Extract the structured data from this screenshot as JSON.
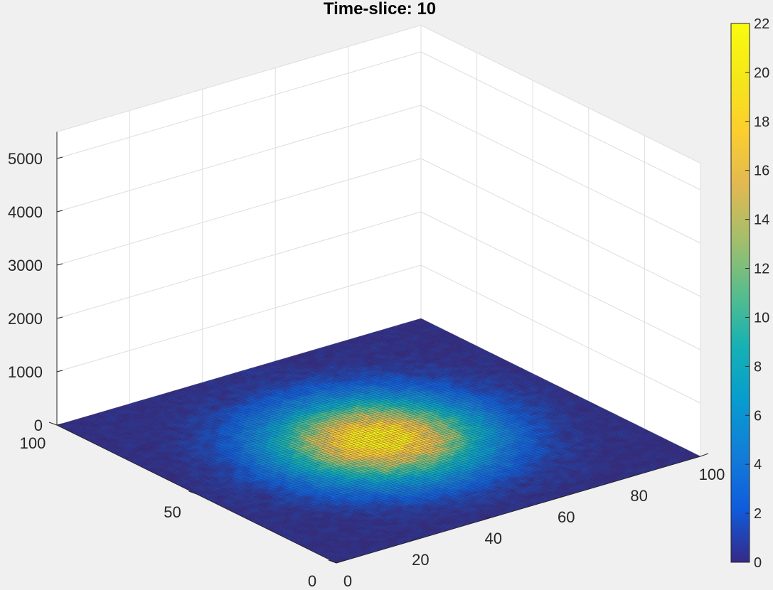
{
  "chart_data": {
    "type": "surface3d",
    "title": "Time-slice: 10",
    "x_ticks": [
      0,
      20,
      40,
      60,
      80,
      100
    ],
    "y_ticks": [
      0,
      50,
      100
    ],
    "z_ticks": [
      0,
      1000,
      2000,
      3000,
      4000,
      5000
    ],
    "xlim": [
      0,
      100
    ],
    "ylim": [
      0,
      100
    ],
    "zlim": [
      0,
      5500
    ],
    "grid": true,
    "colormap": "parula",
    "colorbar": {
      "ticks": [
        0,
        2,
        4,
        6,
        8,
        10,
        12,
        14,
        16,
        18,
        20,
        22
      ],
      "range": [
        0,
        22
      ],
      "placement": "right"
    },
    "surface": {
      "grid_size": 100,
      "peak_value": 20,
      "peak_center_x": 50,
      "peak_center_y": 50,
      "peak_spread": 16,
      "noise": 2.5,
      "height_near_zero": true
    },
    "colors": {
      "background": "#f0f0f0",
      "pane": "#ffffff",
      "gridline": "#dedede",
      "edge": "#1a1a1a"
    }
  }
}
